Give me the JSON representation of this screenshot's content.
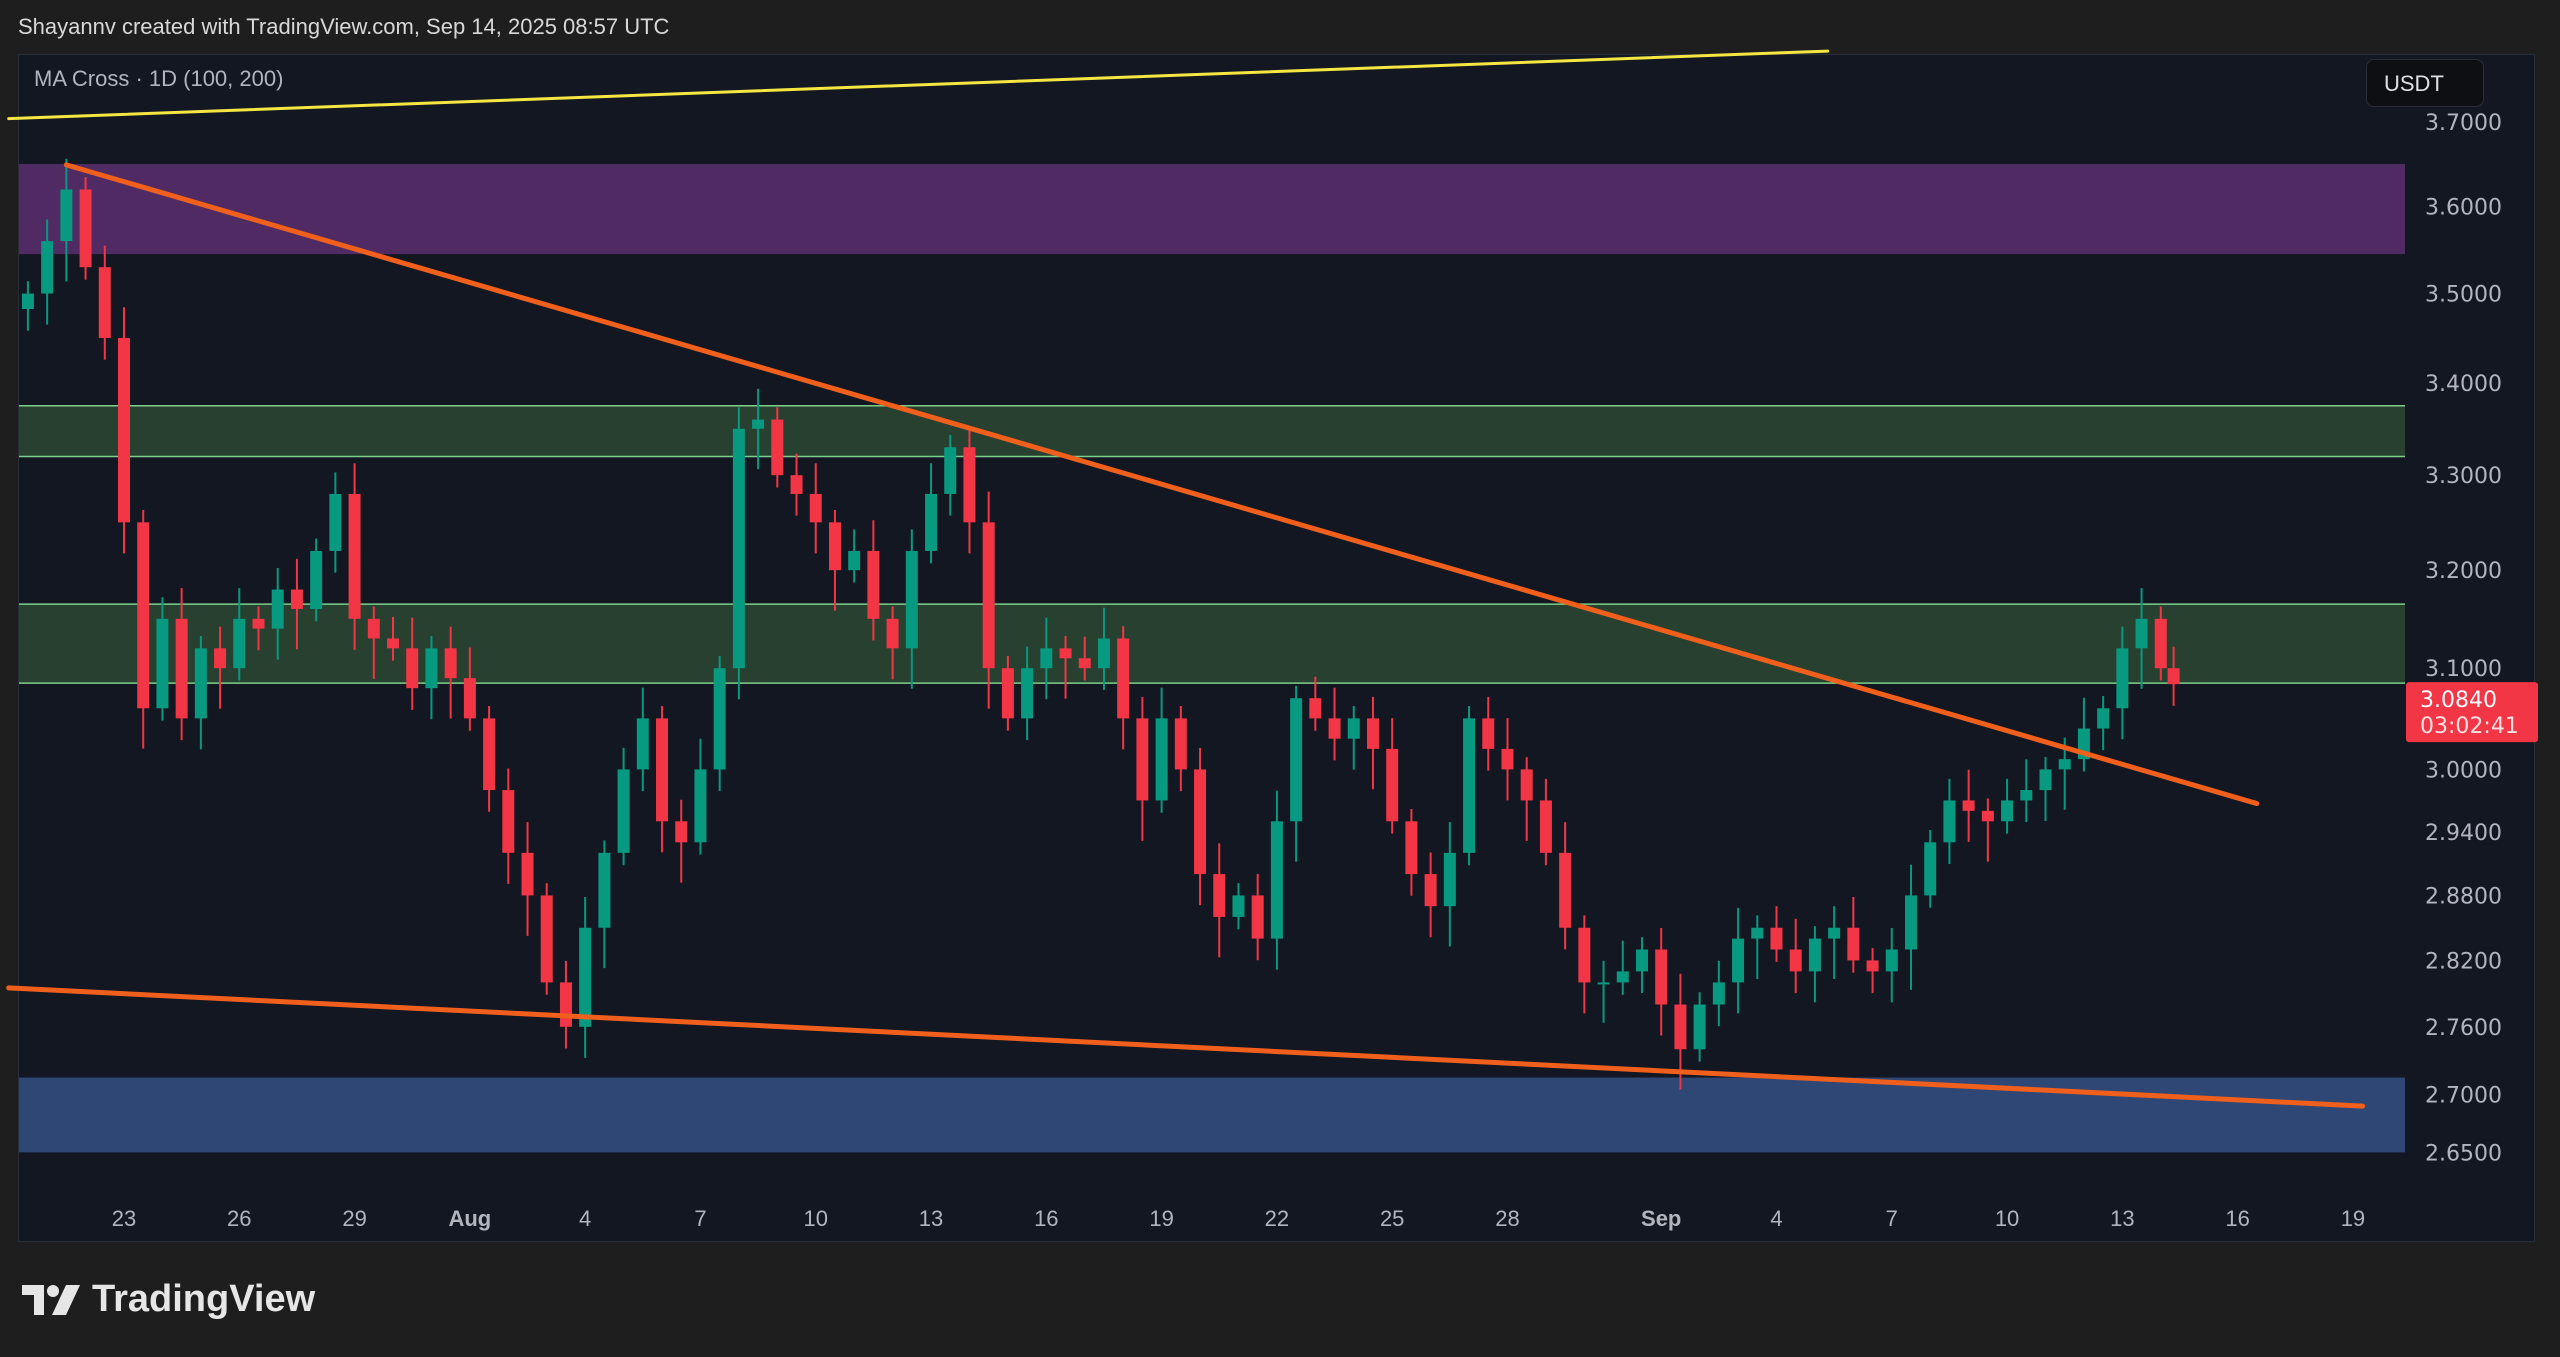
{
  "credit": "Shayannv created with TradingView.com, Sep 14, 2025 08:57 UTC",
  "indicator_label": "MA Cross · 1D (100, 200)",
  "currency": "USDT",
  "logo_text": "TradingView",
  "chart_data": {
    "type": "candlestick",
    "y_scale": "log",
    "ylim": [
      2.59,
      3.79
    ],
    "y_ticks": [
      "3.7000",
      "3.6000",
      "3.5000",
      "3.4000",
      "3.3000",
      "3.2000",
      "3.1000",
      "3.0000",
      "2.9400",
      "2.8800",
      "2.8200",
      "2.7600",
      "2.7000",
      "2.6500"
    ],
    "x_ticks": [
      {
        "date": "2025-07-23",
        "label": "23"
      },
      {
        "date": "2025-07-26",
        "label": "26"
      },
      {
        "date": "2025-07-29",
        "label": "29"
      },
      {
        "date": "2025-08-01",
        "label": "Aug"
      },
      {
        "date": "2025-08-04",
        "label": "4"
      },
      {
        "date": "2025-08-07",
        "label": "7"
      },
      {
        "date": "2025-08-10",
        "label": "10"
      },
      {
        "date": "2025-08-13",
        "label": "13"
      },
      {
        "date": "2025-08-16",
        "label": "16"
      },
      {
        "date": "2025-08-19",
        "label": "19"
      },
      {
        "date": "2025-08-22",
        "label": "22"
      },
      {
        "date": "2025-08-25",
        "label": "25"
      },
      {
        "date": "2025-08-28",
        "label": "28"
      },
      {
        "date": "2025-09-01",
        "label": "Sep"
      },
      {
        "date": "2025-09-04",
        "label": "4"
      },
      {
        "date": "2025-09-07",
        "label": "7"
      },
      {
        "date": "2025-09-10",
        "label": "10"
      },
      {
        "date": "2025-09-13",
        "label": "13"
      },
      {
        "date": "2025-09-16",
        "label": "16"
      },
      {
        "date": "2025-09-19",
        "label": "19"
      }
    ],
    "last_price": {
      "value": "3.0840",
      "countdown": "03:02:41",
      "color": "#f23645"
    },
    "colors": {
      "up": "#089981",
      "down": "#f23645"
    },
    "closes": [
      [
        "2025-07-20T12",
        3.5
      ],
      [
        "2025-07-21T00",
        3.56
      ],
      [
        "2025-07-21T12",
        3.62
      ],
      [
        "2025-07-22T00",
        3.53
      ],
      [
        "2025-07-22T12",
        3.45
      ],
      [
        "2025-07-23T00",
        3.25
      ],
      [
        "2025-07-23T12",
        3.06
      ],
      [
        "2025-07-24T00",
        3.15
      ],
      [
        "2025-07-24T12",
        3.05
      ],
      [
        "2025-07-25T00",
        3.12
      ],
      [
        "2025-07-25T12",
        3.1
      ],
      [
        "2025-07-26T00",
        3.15
      ],
      [
        "2025-07-26T12",
        3.14
      ],
      [
        "2025-07-27T00",
        3.18
      ],
      [
        "2025-07-27T12",
        3.16
      ],
      [
        "2025-07-28T00",
        3.22
      ],
      [
        "2025-07-28T12",
        3.28
      ],
      [
        "2025-07-29T00",
        3.15
      ],
      [
        "2025-07-29T12",
        3.13
      ],
      [
        "2025-07-30T00",
        3.12
      ],
      [
        "2025-07-30T12",
        3.08
      ],
      [
        "2025-07-31T00",
        3.12
      ],
      [
        "2025-07-31T12",
        3.09
      ],
      [
        "2025-08-01T00",
        3.05
      ],
      [
        "2025-08-01T12",
        2.98
      ],
      [
        "2025-08-02T00",
        2.92
      ],
      [
        "2025-08-02T12",
        2.88
      ],
      [
        "2025-08-03T00",
        2.8
      ],
      [
        "2025-08-03T12",
        2.76
      ],
      [
        "2025-08-04T00",
        2.85
      ],
      [
        "2025-08-04T12",
        2.92
      ],
      [
        "2025-08-05T00",
        3.0
      ],
      [
        "2025-08-05T12",
        3.05
      ],
      [
        "2025-08-06T00",
        2.95
      ],
      [
        "2025-08-06T12",
        2.93
      ],
      [
        "2025-08-07T00",
        3.0
      ],
      [
        "2025-08-07T12",
        3.1
      ],
      [
        "2025-08-08T00",
        3.35
      ],
      [
        "2025-08-08T12",
        3.36
      ],
      [
        "2025-08-09T00",
        3.3
      ],
      [
        "2025-08-09T12",
        3.28
      ],
      [
        "2025-08-10T00",
        3.25
      ],
      [
        "2025-08-10T12",
        3.2
      ],
      [
        "2025-08-11T00",
        3.22
      ],
      [
        "2025-08-11T12",
        3.15
      ],
      [
        "2025-08-12T00",
        3.12
      ],
      [
        "2025-08-12T12",
        3.22
      ],
      [
        "2025-08-13T00",
        3.28
      ],
      [
        "2025-08-13T12",
        3.33
      ],
      [
        "2025-08-14T00",
        3.25
      ],
      [
        "2025-08-14T12",
        3.1
      ],
      [
        "2025-08-15T00",
        3.05
      ],
      [
        "2025-08-15T12",
        3.1
      ],
      [
        "2025-08-16T00",
        3.12
      ],
      [
        "2025-08-16T12",
        3.11
      ],
      [
        "2025-08-17T00",
        3.1
      ],
      [
        "2025-08-17T12",
        3.13
      ],
      [
        "2025-08-18T00",
        3.05
      ],
      [
        "2025-08-18T12",
        2.97
      ],
      [
        "2025-08-19T00",
        3.05
      ],
      [
        "2025-08-19T12",
        3.0
      ],
      [
        "2025-08-20T00",
        2.9
      ],
      [
        "2025-08-20T12",
        2.86
      ],
      [
        "2025-08-21T00",
        2.88
      ],
      [
        "2025-08-21T12",
        2.84
      ],
      [
        "2025-08-22T00",
        2.95
      ],
      [
        "2025-08-22T12",
        3.07
      ],
      [
        "2025-08-23T00",
        3.05
      ],
      [
        "2025-08-23T12",
        3.03
      ],
      [
        "2025-08-24T00",
        3.05
      ],
      [
        "2025-08-24T12",
        3.02
      ],
      [
        "2025-08-25T00",
        2.95
      ],
      [
        "2025-08-25T12",
        2.9
      ],
      [
        "2025-08-26T00",
        2.87
      ],
      [
        "2025-08-26T12",
        2.92
      ],
      [
        "2025-08-27T00",
        3.05
      ],
      [
        "2025-08-27T12",
        3.02
      ],
      [
        "2025-08-28T00",
        3.0
      ],
      [
        "2025-08-28T12",
        2.97
      ],
      [
        "2025-08-29T00",
        2.92
      ],
      [
        "2025-08-29T12",
        2.85
      ],
      [
        "2025-08-30T00",
        2.8
      ],
      [
        "2025-08-30T12",
        2.8
      ],
      [
        "2025-08-31T00",
        2.81
      ],
      [
        "2025-08-31T12",
        2.83
      ],
      [
        "2025-09-01T00",
        2.78
      ],
      [
        "2025-09-01T12",
        2.74
      ],
      [
        "2025-09-02T00",
        2.78
      ],
      [
        "2025-09-02T12",
        2.8
      ],
      [
        "2025-09-03T00",
        2.84
      ],
      [
        "2025-09-03T12",
        2.85
      ],
      [
        "2025-09-04T00",
        2.83
      ],
      [
        "2025-09-04T12",
        2.81
      ],
      [
        "2025-09-05T00",
        2.84
      ],
      [
        "2025-09-05T12",
        2.85
      ],
      [
        "2025-09-06T00",
        2.82
      ],
      [
        "2025-09-06T12",
        2.81
      ],
      [
        "2025-09-07T00",
        2.83
      ],
      [
        "2025-09-07T12",
        2.88
      ],
      [
        "2025-09-08T00",
        2.93
      ],
      [
        "2025-09-08T12",
        2.97
      ],
      [
        "2025-09-09T00",
        2.96
      ],
      [
        "2025-09-09T12",
        2.95
      ],
      [
        "2025-09-10T00",
        2.97
      ],
      [
        "2025-09-10T12",
        2.98
      ],
      [
        "2025-09-11T00",
        3.0
      ],
      [
        "2025-09-11T12",
        3.01
      ],
      [
        "2025-09-12T00",
        3.04
      ],
      [
        "2025-09-12T12",
        3.06
      ],
      [
        "2025-09-13T00",
        3.12
      ],
      [
        "2025-09-13T12",
        3.15
      ],
      [
        "2025-09-14T00",
        3.1
      ],
      [
        "2025-09-14T08",
        3.084
      ]
    ],
    "zones": [
      {
        "name": "supply",
        "from": 3.545,
        "to": 3.65,
        "color": "#4f2a63"
      },
      {
        "name": "resistance",
        "from": 3.32,
        "to": 3.375,
        "color": "#27402f",
        "border": "#7ccf8a"
      },
      {
        "name": "mid-zone",
        "from": 3.085,
        "to": 3.165,
        "color": "#27402f",
        "border": "#7ccf8a"
      },
      {
        "name": "demand",
        "from": 2.65,
        "to": 2.715,
        "color": "#2f4775"
      }
    ],
    "trendlines": [
      {
        "name": "ma-line",
        "color": "#f5e642",
        "from": [
          "2025-07-20T00",
          3.704
        ],
        "to": [
          "2025-09-05T08",
          3.786
        ]
      },
      {
        "name": "descending-resistance",
        "color": "#f0601c",
        "from": [
          "2025-07-21T12",
          3.649
        ],
        "to": [
          "2025-09-16T12",
          2.967
        ]
      },
      {
        "name": "lower-support",
        "color": "#f0601c",
        "from": [
          "2025-07-20T00",
          2.795
        ],
        "to": [
          "2025-09-19T06",
          2.69
        ]
      }
    ]
  }
}
